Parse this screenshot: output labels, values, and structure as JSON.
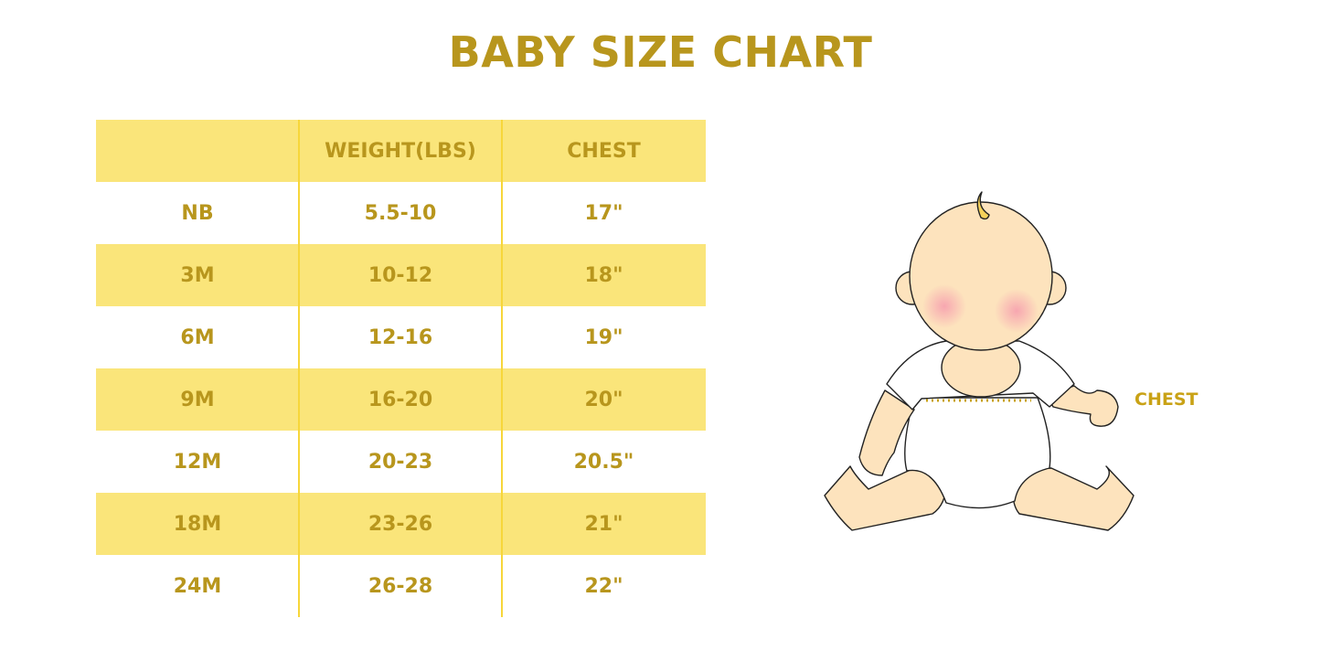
{
  "title": "BABY SIZE CHART",
  "table": {
    "headers": [
      "",
      "WEIGHT(LBS)",
      "CHEST"
    ],
    "rows": [
      [
        "NB",
        "5.5-10",
        "17\""
      ],
      [
        "3M",
        "10-12",
        "18\""
      ],
      [
        "6M",
        "12-16",
        "19\""
      ],
      [
        "9M",
        "16-20",
        "20\""
      ],
      [
        "12M",
        "20-23",
        "20.5\""
      ],
      [
        "18M",
        "23-26",
        "21\""
      ],
      [
        "24M",
        "26-28",
        "22\""
      ]
    ]
  },
  "illustration": {
    "chest_label": "CHEST",
    "icon": "baby-illustration"
  },
  "colors": {
    "accent_text": "#b8961d",
    "row_shade": "#fae57a",
    "divider": "#f7d63a",
    "skin": "#fde3bd"
  }
}
